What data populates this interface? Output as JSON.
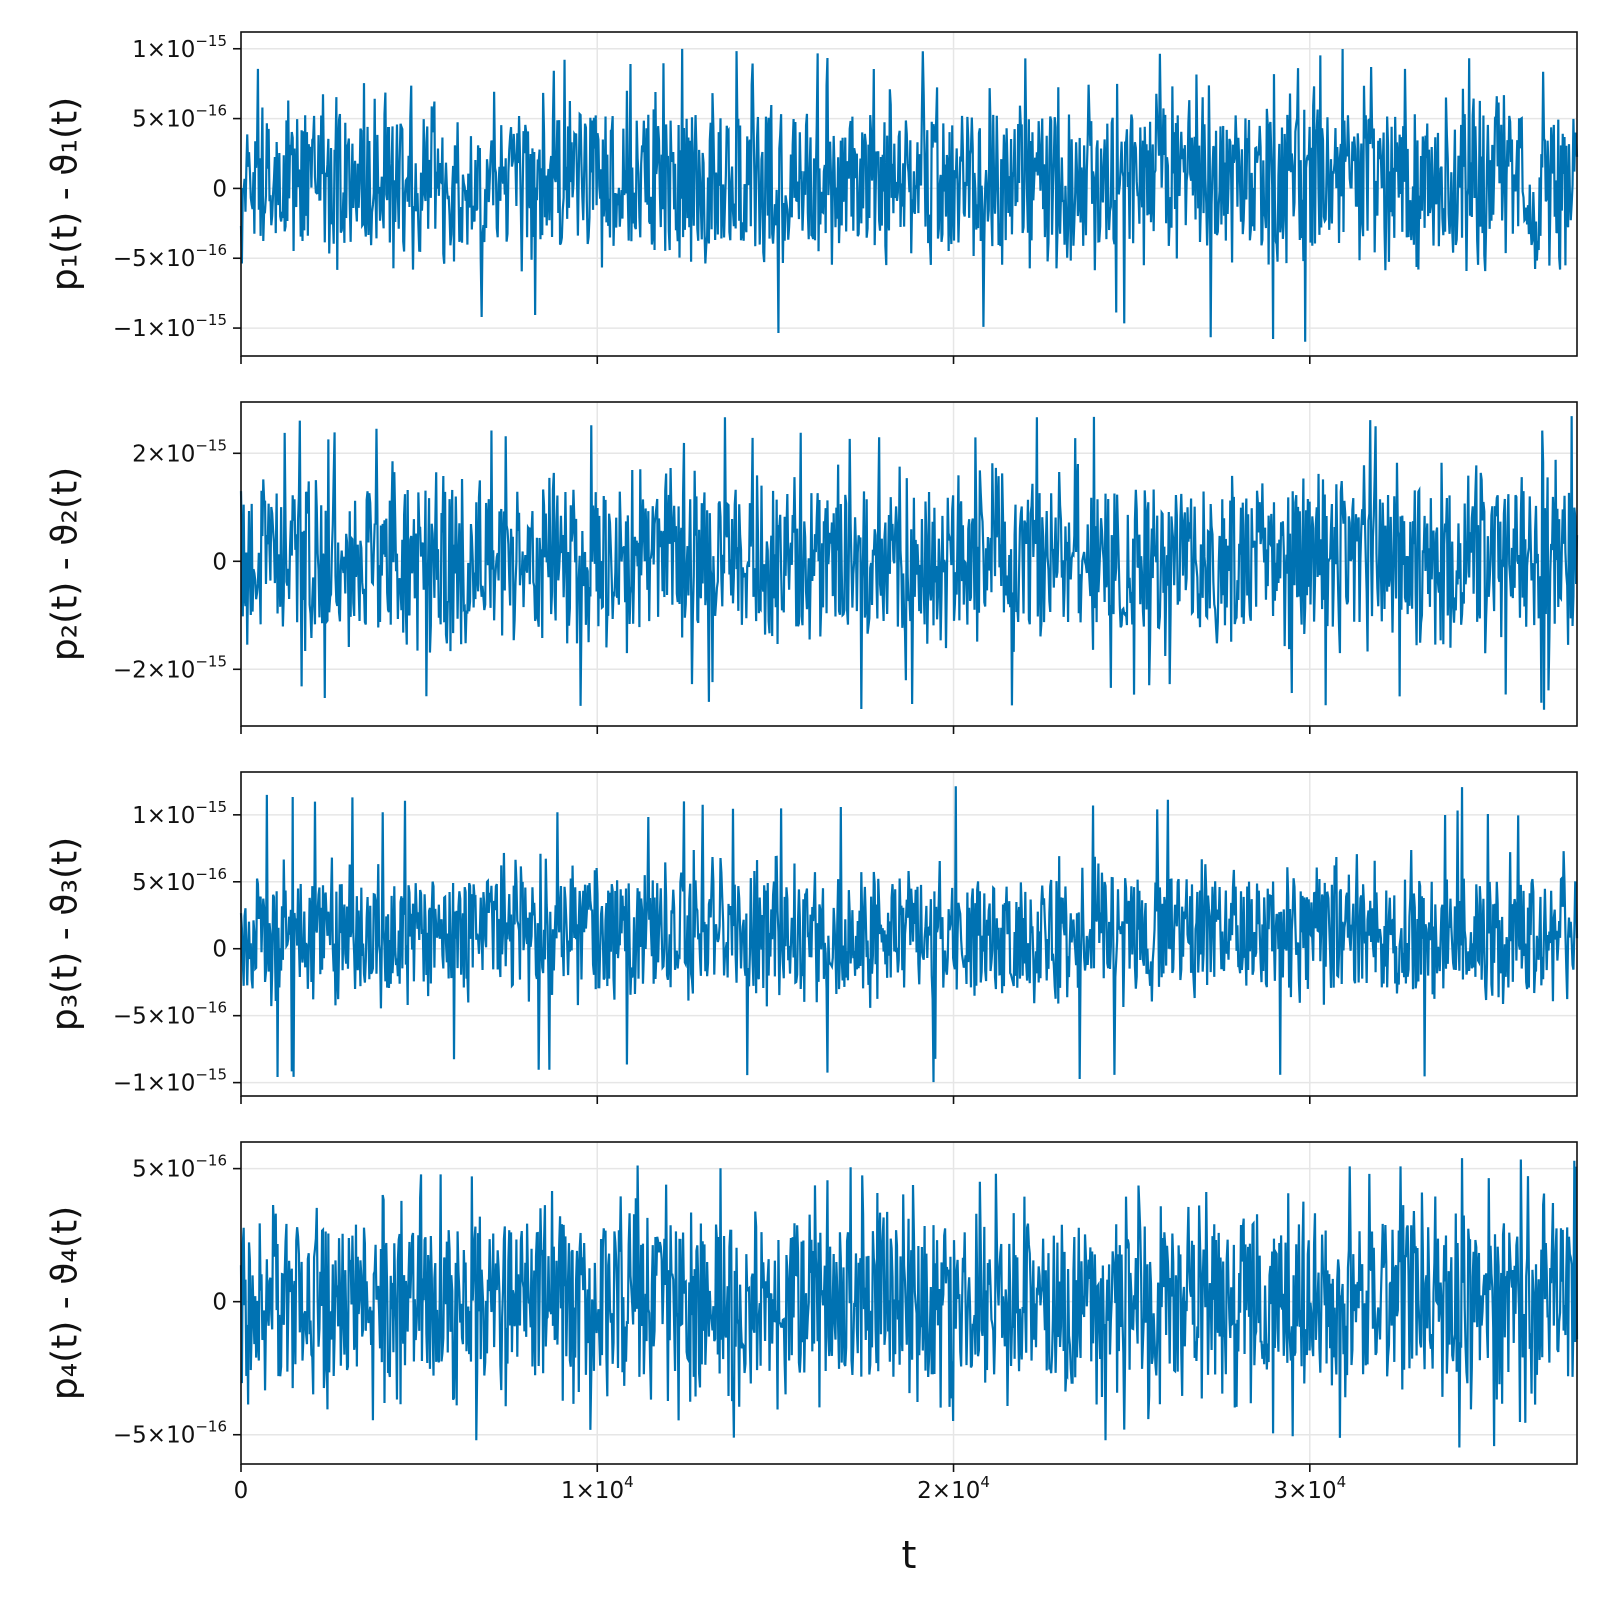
{
  "chart_data": [
    {
      "type": "line",
      "ylabel": "p₁(t) - ϑ₁(t)",
      "color": "#0072b2",
      "xlim": [
        0,
        37500
      ],
      "ylim": [
        -1.2e-15,
        1.12e-15
      ],
      "yticks": [
        {
          "value": -1e-15,
          "mant": "−1×10",
          "exp": "−15"
        },
        {
          "value": -5e-16,
          "mant": "−5×10",
          "exp": "−16"
        },
        {
          "value": 0,
          "mant": "0",
          "exp": ""
        },
        {
          "value": 5e-16,
          "mant": "5×10",
          "exp": "−16"
        },
        {
          "value": 1e-15,
          "mant": "1×10",
          "exp": "−15"
        }
      ],
      "series": [
        {
          "typical_range": [
            -4.4e-16,
            5.6e-16
          ],
          "peak_max": 1e-15,
          "peak_min": -1.1e-15
        }
      ]
    },
    {
      "type": "line",
      "ylabel": "p₂(t) - ϑ₂(t)",
      "color": "#0072b2",
      "xlim": [
        0,
        37500
      ],
      "ylim": [
        -3.05e-15,
        2.95e-15
      ],
      "yticks": [
        {
          "value": -2e-15,
          "mant": "−2×10",
          "exp": "−15"
        },
        {
          "value": 0,
          "mant": "0",
          "exp": ""
        },
        {
          "value": 2e-15,
          "mant": "2×10",
          "exp": "−15"
        }
      ],
      "series": [
        {
          "typical_range": [
            -1.3e-15,
            1.4e-15
          ],
          "peak_max": 2.7e-15,
          "peak_min": -2.75e-15
        }
      ]
    },
    {
      "type": "line",
      "ylabel": "p₃(t) - ϑ₃(t)",
      "color": "#0072b2",
      "xlim": [
        0,
        37500
      ],
      "ylim": [
        -1.1e-15,
        1.32e-15
      ],
      "yticks": [
        {
          "value": -1e-15,
          "mant": "−1×10",
          "exp": "−15"
        },
        {
          "value": -5e-16,
          "mant": "−5×10",
          "exp": "−16"
        },
        {
          "value": 0,
          "mant": "0",
          "exp": ""
        },
        {
          "value": 5e-16,
          "mant": "5×10",
          "exp": "−16"
        },
        {
          "value": 1e-15,
          "mant": "1×10",
          "exp": "−15"
        }
      ],
      "series": [
        {
          "typical_range": [
            -3.3e-16,
            5.5e-16
          ],
          "peak_max": 1.22e-15,
          "peak_min": -1e-15
        }
      ]
    },
    {
      "type": "line",
      "ylabel": "p₄(t) - ϑ₄(t)",
      "xlabel": "t",
      "color": "#0072b2",
      "xlim": [
        0,
        37500
      ],
      "ylim": [
        -6.1e-16,
        6e-16
      ],
      "xticks": [
        {
          "value": 0,
          "mant": "0",
          "exp": ""
        },
        {
          "value": 10000,
          "mant": "1×10",
          "exp": "4"
        },
        {
          "value": 20000,
          "mant": "2×10",
          "exp": "4"
        },
        {
          "value": 30000,
          "mant": "3×10",
          "exp": "4"
        }
      ],
      "yticks": [
        {
          "value": -5e-16,
          "mant": "−5×10",
          "exp": "−16"
        },
        {
          "value": 0,
          "mant": "0",
          "exp": ""
        },
        {
          "value": 5e-16,
          "mant": "5×10",
          "exp": "−16"
        }
      ],
      "series": [
        {
          "typical_range": [
            -3e-16,
            3.1e-16
          ],
          "peak_max": 5.4e-16,
          "peak_min": -5.5e-16
        }
      ]
    }
  ]
}
